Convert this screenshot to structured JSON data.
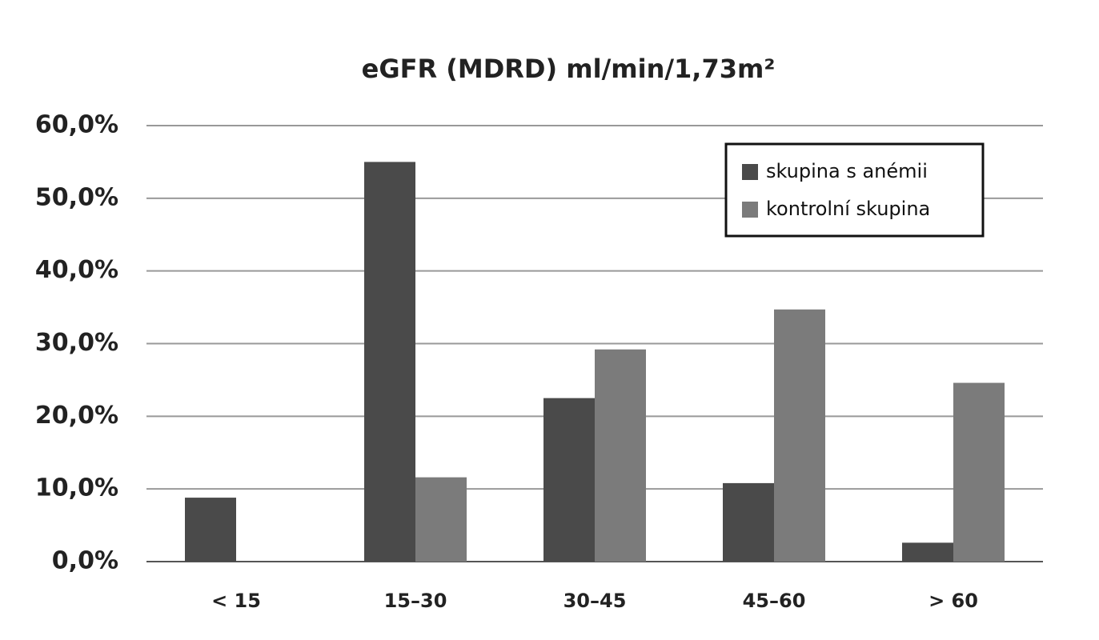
{
  "chart_data": {
    "type": "bar",
    "title": "eGFR (MDRD) ml/min/1,73m²",
    "categories": [
      "< 15",
      "15–30",
      "30–45",
      "45–60",
      "> 60"
    ],
    "series": [
      {
        "name": "skupina s anémii",
        "color": "#4a4a4a",
        "values": [
          8.8,
          55,
          22.5,
          10.8,
          2.6
        ]
      },
      {
        "name": "kontrolní skupina",
        "color": "#7b7b7b",
        "values": [
          0,
          11.6,
          29.2,
          34.7,
          24.6
        ]
      }
    ],
    "ylim": [
      0,
      60
    ],
    "yticks": [
      {
        "value": 0,
        "label": "0,0%"
      },
      {
        "value": 10,
        "label": "10,0%"
      },
      {
        "value": 20,
        "label": "20,0%"
      },
      {
        "value": 30,
        "label": "30,0%"
      },
      {
        "value": 40,
        "label": "40,0%"
      },
      {
        "value": 50,
        "label": "50,0%"
      },
      {
        "value": 60,
        "label": "60,0%"
      }
    ],
    "grid": true,
    "legend": "top-right"
  }
}
